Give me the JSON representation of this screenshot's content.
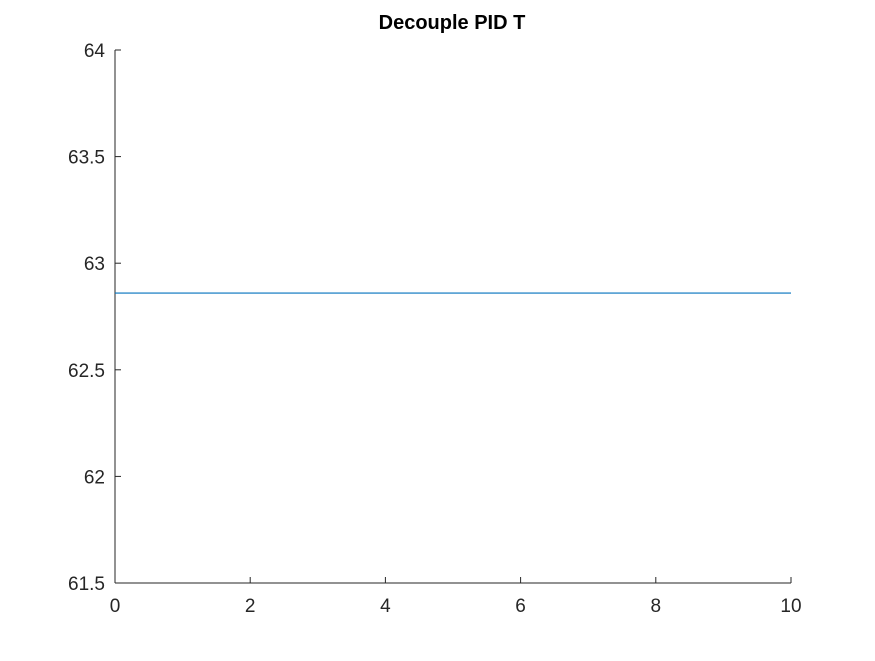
{
  "chart_data": {
    "type": "line",
    "title": "Decouple PID T",
    "xlabel": "",
    "ylabel": "",
    "xlim": [
      0,
      10
    ],
    "ylim": [
      61.5,
      64
    ],
    "x_ticks": [
      0,
      2,
      4,
      6,
      8,
      10
    ],
    "y_ticks": [
      61.5,
      62,
      62.5,
      63,
      63.5,
      64
    ],
    "x_tick_labels": [
      "0",
      "2",
      "4",
      "6",
      "8",
      "10"
    ],
    "y_tick_labels": [
      "61.5",
      "62",
      "62.5",
      "63",
      "63.5",
      "64"
    ],
    "grid": false,
    "series": [
      {
        "color": "#0072BD",
        "x": [
          0,
          10
        ],
        "y": [
          62.86,
          62.86
        ]
      }
    ]
  },
  "colors": {
    "axis": "#262626",
    "background": "#ffffff",
    "series_1": "#0072BD"
  }
}
